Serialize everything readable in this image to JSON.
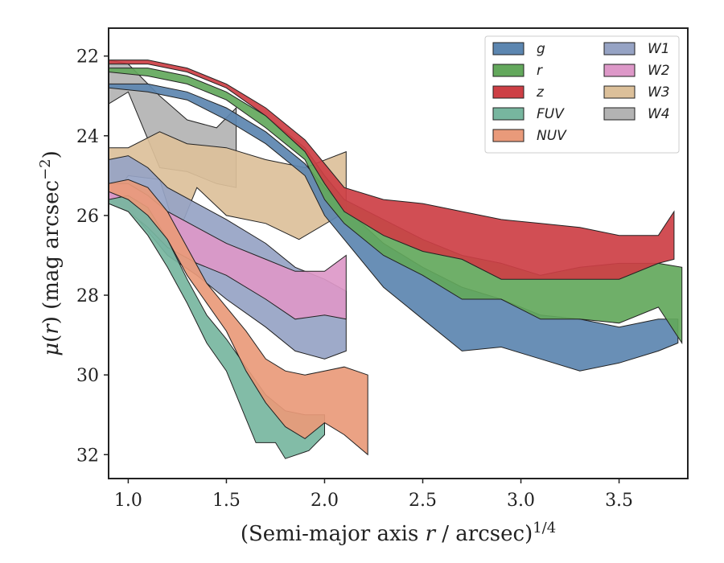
{
  "chart_data": {
    "type": "area",
    "xlabel": "(Semi-major axis r / arcsec)^1/4",
    "ylabel": "μ(r) (mag arcsec^−2)",
    "xlim": [
      0.9,
      3.85
    ],
    "ylim": [
      32.6,
      21.3
    ],
    "y_inverted": true,
    "x_ticks": [
      1.0,
      1.5,
      2.0,
      2.5,
      3.0,
      3.5
    ],
    "x_tick_labels": [
      "1.0",
      "1.5",
      "2.0",
      "2.5",
      "3.0",
      "3.5"
    ],
    "y_ticks": [
      22,
      24,
      26,
      28,
      30,
      32
    ],
    "y_tick_labels": [
      "22",
      "24",
      "26",
      "28",
      "30",
      "32"
    ],
    "legend_placement": "top-right",
    "legend_columns": 2,
    "series": [
      {
        "name": "W4",
        "color": "#b3b3b3",
        "upper": [
          [
            0.9,
            22.1
          ],
          [
            1.0,
            22.2
          ],
          [
            1.16,
            23.0
          ],
          [
            1.3,
            23.6
          ],
          [
            1.45,
            23.8
          ],
          [
            1.55,
            23.3
          ]
        ],
        "lower": [
          [
            0.9,
            23.2
          ],
          [
            1.0,
            22.9
          ],
          [
            1.16,
            24.8
          ],
          [
            1.3,
            24.9
          ],
          [
            1.45,
            25.2
          ],
          [
            1.55,
            25.3
          ]
        ]
      },
      {
        "name": "W3",
        "color": "#dcc09a",
        "upper": [
          [
            0.9,
            24.3
          ],
          [
            1.0,
            24.3
          ],
          [
            1.16,
            23.9
          ],
          [
            1.3,
            24.2
          ],
          [
            1.5,
            24.3
          ],
          [
            1.7,
            24.6
          ],
          [
            1.9,
            24.8
          ],
          [
            2.11,
            24.4
          ]
        ],
        "lower": [
          [
            0.9,
            25.7
          ],
          [
            1.0,
            25.0
          ],
          [
            1.16,
            25.1
          ],
          [
            1.25,
            26.5
          ],
          [
            1.35,
            25.3
          ],
          [
            1.5,
            26.0
          ],
          [
            1.7,
            26.2
          ],
          [
            1.87,
            26.6
          ],
          [
            2.11,
            25.9
          ]
        ]
      },
      {
        "name": "W1",
        "color": "#96a3c4",
        "upper": [
          [
            0.9,
            24.6
          ],
          [
            1.0,
            24.5
          ],
          [
            1.1,
            24.8
          ],
          [
            1.2,
            25.3
          ],
          [
            1.35,
            25.7
          ],
          [
            1.5,
            26.1
          ],
          [
            1.7,
            26.7
          ],
          [
            1.85,
            27.3
          ],
          [
            2.0,
            27.6
          ],
          [
            2.11,
            27.9
          ]
        ],
        "lower": [
          [
            0.9,
            25.6
          ],
          [
            1.0,
            25.8
          ],
          [
            1.1,
            26.4
          ],
          [
            1.2,
            27.0
          ],
          [
            1.35,
            27.5
          ],
          [
            1.5,
            28.1
          ],
          [
            1.7,
            28.8
          ],
          [
            1.85,
            29.4
          ],
          [
            2.0,
            29.6
          ],
          [
            2.11,
            29.4
          ]
        ]
      },
      {
        "name": "W2",
        "color": "#dd98c8",
        "upper": [
          [
            0.9,
            25.2
          ],
          [
            1.0,
            25.2
          ],
          [
            1.1,
            25.5
          ],
          [
            1.2,
            25.9
          ],
          [
            1.35,
            26.3
          ],
          [
            1.5,
            26.7
          ],
          [
            1.7,
            27.1
          ],
          [
            1.85,
            27.4
          ],
          [
            2.0,
            27.4
          ],
          [
            2.11,
            27.0
          ]
        ],
        "lower": [
          [
            0.9,
            25.7
          ],
          [
            1.0,
            25.9
          ],
          [
            1.1,
            26.3
          ],
          [
            1.2,
            26.8
          ],
          [
            1.35,
            27.2
          ],
          [
            1.5,
            27.5
          ],
          [
            1.7,
            28.1
          ],
          [
            1.85,
            28.6
          ],
          [
            2.0,
            28.5
          ],
          [
            2.11,
            28.6
          ]
        ]
      },
      {
        "name": "FUV",
        "color": "#77b69f",
        "upper": [
          [
            0.9,
            25.6
          ],
          [
            1.0,
            25.5
          ],
          [
            1.1,
            25.8
          ],
          [
            1.2,
            26.6
          ],
          [
            1.3,
            27.6
          ],
          [
            1.4,
            28.5
          ],
          [
            1.5,
            29.1
          ],
          [
            1.6,
            29.8
          ],
          [
            1.7,
            30.5
          ],
          [
            1.8,
            30.9
          ],
          [
            1.9,
            31.0
          ],
          [
            2.0,
            31.0
          ]
        ],
        "lower": [
          [
            0.9,
            25.7
          ],
          [
            1.0,
            25.9
          ],
          [
            1.1,
            26.5
          ],
          [
            1.2,
            27.3
          ],
          [
            1.3,
            28.2
          ],
          [
            1.4,
            29.2
          ],
          [
            1.5,
            29.9
          ],
          [
            1.6,
            31.1
          ],
          [
            1.65,
            31.7
          ],
          [
            1.75,
            31.7
          ],
          [
            1.8,
            32.1
          ],
          [
            1.92,
            31.9
          ],
          [
            2.0,
            31.5
          ]
        ]
      },
      {
        "name": "NUV",
        "color": "#e99a7a",
        "upper": [
          [
            0.9,
            25.2
          ],
          [
            1.0,
            25.1
          ],
          [
            1.1,
            25.3
          ],
          [
            1.2,
            25.9
          ],
          [
            1.3,
            26.8
          ],
          [
            1.4,
            27.7
          ],
          [
            1.5,
            28.3
          ],
          [
            1.6,
            28.9
          ],
          [
            1.7,
            29.6
          ],
          [
            1.8,
            29.9
          ],
          [
            1.9,
            30.0
          ],
          [
            2.0,
            29.9
          ],
          [
            2.1,
            29.8
          ],
          [
            2.22,
            30.0
          ]
        ],
        "lower": [
          [
            0.9,
            25.4
          ],
          [
            1.0,
            25.6
          ],
          [
            1.1,
            26.0
          ],
          [
            1.2,
            26.6
          ],
          [
            1.3,
            27.5
          ],
          [
            1.4,
            28.2
          ],
          [
            1.5,
            28.9
          ],
          [
            1.6,
            29.9
          ],
          [
            1.7,
            30.7
          ],
          [
            1.8,
            31.3
          ],
          [
            1.9,
            31.6
          ],
          [
            2.0,
            31.2
          ],
          [
            2.1,
            31.5
          ],
          [
            2.22,
            32.0
          ]
        ]
      },
      {
        "name": "g",
        "color": "#5c86b0",
        "upper": [
          [
            0.9,
            22.7
          ],
          [
            1.1,
            22.7
          ],
          [
            1.3,
            22.9
          ],
          [
            1.5,
            23.3
          ],
          [
            1.7,
            23.9
          ],
          [
            1.9,
            24.7
          ],
          [
            2.0,
            25.3
          ],
          [
            2.1,
            25.8
          ],
          [
            2.3,
            26.7
          ],
          [
            2.5,
            27.3
          ],
          [
            2.7,
            27.8
          ],
          [
            2.9,
            28.1
          ],
          [
            3.1,
            28.5
          ],
          [
            3.3,
            28.6
          ],
          [
            3.5,
            28.8
          ],
          [
            3.7,
            28.6
          ],
          [
            3.8,
            28.6
          ]
        ],
        "lower": [
          [
            0.9,
            22.8
          ],
          [
            1.1,
            22.9
          ],
          [
            1.3,
            23.1
          ],
          [
            1.5,
            23.6
          ],
          [
            1.7,
            24.2
          ],
          [
            1.9,
            25.0
          ],
          [
            2.0,
            26.0
          ],
          [
            2.1,
            26.6
          ],
          [
            2.3,
            27.8
          ],
          [
            2.5,
            28.6
          ],
          [
            2.7,
            29.4
          ],
          [
            2.9,
            29.3
          ],
          [
            3.1,
            29.6
          ],
          [
            3.3,
            29.9
          ],
          [
            3.5,
            29.7
          ],
          [
            3.7,
            29.4
          ],
          [
            3.8,
            29.2
          ]
        ]
      },
      {
        "name": "r",
        "color": "#63a85c",
        "upper": [
          [
            0.9,
            22.3
          ],
          [
            1.1,
            22.3
          ],
          [
            1.3,
            22.5
          ],
          [
            1.5,
            22.9
          ],
          [
            1.7,
            23.5
          ],
          [
            1.9,
            24.3
          ],
          [
            2.0,
            25.0
          ],
          [
            2.1,
            25.6
          ],
          [
            2.3,
            26.1
          ],
          [
            2.5,
            26.6
          ],
          [
            2.7,
            27.0
          ],
          [
            2.9,
            27.2
          ],
          [
            3.1,
            27.5
          ],
          [
            3.3,
            27.3
          ],
          [
            3.5,
            27.2
          ],
          [
            3.7,
            27.2
          ],
          [
            3.82,
            27.3
          ]
        ],
        "lower": [
          [
            0.9,
            22.4
          ],
          [
            1.1,
            22.5
          ],
          [
            1.3,
            22.7
          ],
          [
            1.5,
            23.1
          ],
          [
            1.7,
            23.8
          ],
          [
            1.9,
            24.6
          ],
          [
            2.0,
            25.6
          ],
          [
            2.1,
            26.2
          ],
          [
            2.3,
            27.0
          ],
          [
            2.5,
            27.5
          ],
          [
            2.7,
            28.1
          ],
          [
            2.9,
            28.1
          ],
          [
            3.1,
            28.6
          ],
          [
            3.3,
            28.6
          ],
          [
            3.5,
            28.7
          ],
          [
            3.7,
            28.3
          ],
          [
            3.82,
            29.2
          ]
        ]
      },
      {
        "name": "z",
        "color": "#cd3f45",
        "upper": [
          [
            0.9,
            22.1
          ],
          [
            1.1,
            22.1
          ],
          [
            1.3,
            22.3
          ],
          [
            1.5,
            22.7
          ],
          [
            1.7,
            23.3
          ],
          [
            1.9,
            24.1
          ],
          [
            2.0,
            24.7
          ],
          [
            2.1,
            25.3
          ],
          [
            2.3,
            25.6
          ],
          [
            2.5,
            25.7
          ],
          [
            2.7,
            25.9
          ],
          [
            2.9,
            26.1
          ],
          [
            3.1,
            26.2
          ],
          [
            3.3,
            26.3
          ],
          [
            3.5,
            26.5
          ],
          [
            3.7,
            26.5
          ],
          [
            3.78,
            25.9
          ]
        ],
        "lower": [
          [
            0.9,
            22.2
          ],
          [
            1.1,
            22.2
          ],
          [
            1.3,
            22.4
          ],
          [
            1.5,
            22.8
          ],
          [
            1.7,
            23.5
          ],
          [
            1.9,
            24.4
          ],
          [
            2.0,
            25.2
          ],
          [
            2.1,
            25.9
          ],
          [
            2.3,
            26.5
          ],
          [
            2.5,
            26.9
          ],
          [
            2.7,
            27.1
          ],
          [
            2.9,
            27.6
          ],
          [
            3.1,
            27.6
          ],
          [
            3.3,
            27.6
          ],
          [
            3.5,
            27.6
          ],
          [
            3.7,
            27.2
          ],
          [
            3.78,
            27.1
          ]
        ]
      }
    ],
    "legend": [
      {
        "name": "g",
        "color": "#5c86b0"
      },
      {
        "name": "r",
        "color": "#63a85c"
      },
      {
        "name": "z",
        "color": "#cd3f45"
      },
      {
        "name": "FUV",
        "color": "#77b69f"
      },
      {
        "name": "NUV",
        "color": "#e99a7a"
      },
      {
        "name": "W1",
        "color": "#96a3c4"
      },
      {
        "name": "W2",
        "color": "#dd98c8"
      },
      {
        "name": "W3",
        "color": "#dcc09a"
      },
      {
        "name": "W4",
        "color": "#b3b3b3"
      }
    ]
  }
}
